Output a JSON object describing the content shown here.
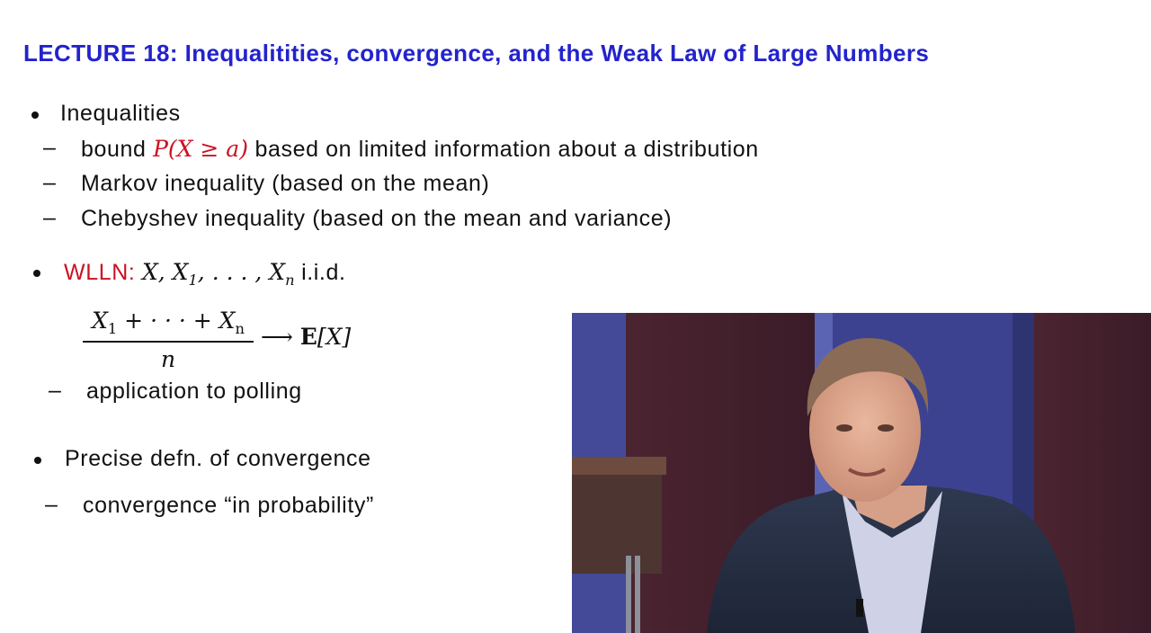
{
  "slide": {
    "title": "LECTURE 18: Inequalitities, convergence, and the Weak Law of Large Numbers",
    "section1": {
      "heading": "Inequalities",
      "items": [
        {
          "prefix": "bound ",
          "math": "P(X ≥ a)",
          "suffix": " based on limited information about a distribution"
        },
        {
          "text": "Markov inequality (based on the mean)"
        },
        {
          "text": "Chebyshev inequality (based on the mean and variance)"
        }
      ]
    },
    "section2": {
      "label": "WLLN:",
      "vars": "X, X",
      "vars_sub1": "1",
      "vars_mid": ", . . . , X",
      "vars_subn": "n",
      "iid": "i.i.d.",
      "numerator": "X",
      "num_sub1": "1",
      "num_mid": " + · · · + X",
      "num_subn": "n",
      "denominator": "n",
      "arrow": "⟶",
      "expectation": "E",
      "expectation_arg": "[X]",
      "item": "application to polling"
    },
    "section3": {
      "heading": "Precise defn. of convergence",
      "item": "convergence “in probability”"
    }
  },
  "video": {
    "label": "lecturer-video"
  },
  "colors": {
    "title": "#2323cc",
    "accent_red": "#cc1122"
  }
}
